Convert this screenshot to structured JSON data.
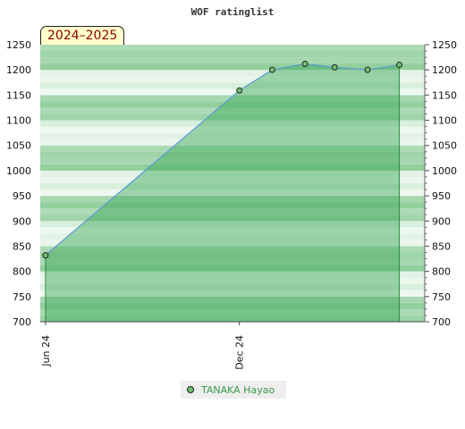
{
  "chart_data": {
    "type": "area",
    "title": "WOF ratinglist",
    "badge": "2024–2025",
    "xlabel": "",
    "ylabel": "",
    "ylim": [
      700,
      1250
    ],
    "y_ticks": [
      700,
      750,
      800,
      850,
      900,
      950,
      1000,
      1050,
      1100,
      1150,
      1200,
      1250
    ],
    "y_ticks_both_sides": true,
    "x_tick_labels": [
      {
        "label": "Jun 24",
        "date": "2024-06-01"
      },
      {
        "label": "Dec 24",
        "date": "2024-12-01"
      }
    ],
    "x_range": [
      "2024-05-27",
      "2025-05-25"
    ],
    "series": [
      {
        "name": "TANAKA Hayao",
        "color": "#6fbf6f",
        "points": [
          {
            "date": "2024-06-01",
            "value": 832
          },
          {
            "date": "2024-12-01",
            "value": 1159
          },
          {
            "date": "2025-01-01",
            "value": 1200
          },
          {
            "date": "2025-02-01",
            "value": 1212
          },
          {
            "date": "2025-03-01",
            "value": 1205
          },
          {
            "date": "2025-04-01",
            "value": 1200
          },
          {
            "date": "2025-05-01",
            "value": 1210
          }
        ]
      }
    ],
    "legend_placement": "bottom"
  }
}
